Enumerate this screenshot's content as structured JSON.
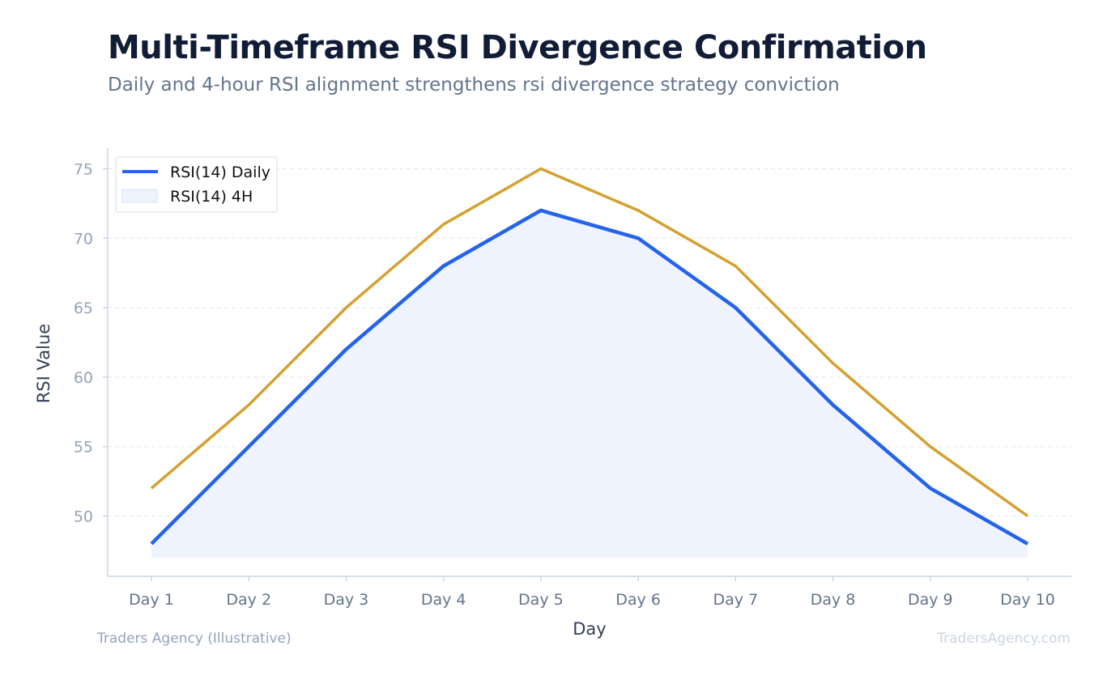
{
  "header": {
    "title": "Multi-Timeframe RSI Divergence Confirmation",
    "subtitle": "Daily and 4-hour RSI alignment strengthens rsi divergence strategy conviction"
  },
  "footer": {
    "source": "Traders Agency (Illustrative)",
    "watermark": "TradersAgency.com"
  },
  "chart_data": {
    "type": "line",
    "title": "Multi-Timeframe RSI Divergence Confirmation",
    "subtitle": "Daily and 4-hour RSI alignment strengthens rsi divergence strategy conviction",
    "xlabel": "Day",
    "ylabel": "RSI Value",
    "categories": [
      "Day 1",
      "Day 2",
      "Day 3",
      "Day 4",
      "Day 5",
      "Day 6",
      "Day 7",
      "Day 8",
      "Day 9",
      "Day 10"
    ],
    "series": [
      {
        "name": "RSI(14) Daily",
        "values": [
          48,
          55,
          62,
          68,
          72,
          70,
          65,
          58,
          52,
          48
        ],
        "color": "#2563eb",
        "fill": "#eef3fd"
      },
      {
        "name": "RSI(14) 4H",
        "values": [
          52,
          58,
          65,
          71,
          75,
          72,
          68,
          61,
          55,
          50
        ],
        "color": "#d4a030"
      }
    ],
    "yticks": [
      50,
      55,
      60,
      65,
      70,
      75
    ],
    "ylim": [
      45.5,
      76.5
    ],
    "fill_baseline": 47,
    "grid": true,
    "legend_position": "top-left"
  }
}
